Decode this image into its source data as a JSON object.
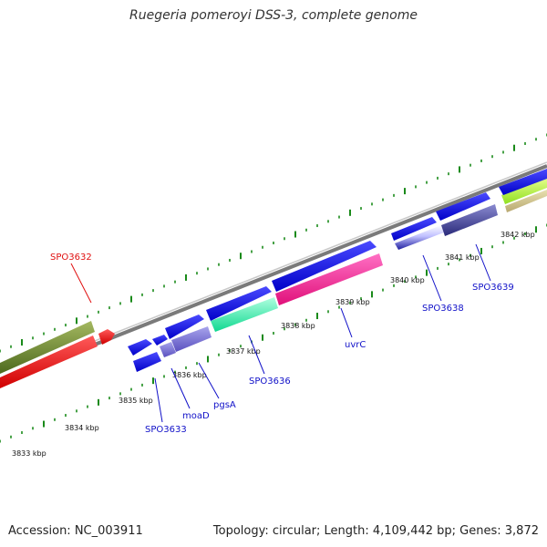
{
  "title": "Ruegeria pomeroyi DSS-3, complete genome",
  "footer": {
    "accession": "Accession: NC_003911",
    "summary": "Topology: circular; Length: 4,109,442 bp; Genes: 3,872"
  },
  "colors": {
    "forward_gene": "#1010e0",
    "ticks": "#1a8a1a",
    "backbone": "#8a8a8a",
    "label_red": "#e01010",
    "label_blue": "#1010c8"
  },
  "ruler": [
    "3833 kbp",
    "3834 kbp",
    "3835 kbp",
    "3836 kbp",
    "3837 kbp",
    "3838 kbp",
    "3839 kbp",
    "3840 kbp",
    "3841 kbp",
    "3842 kbp"
  ],
  "gene_labels": [
    {
      "text": "SPO3632",
      "color": "#e01010"
    },
    {
      "text": "SPO3633",
      "color": "#1010c8"
    },
    {
      "text": "moaD",
      "color": "#1010c8"
    },
    {
      "text": "pgsA",
      "color": "#1010c8"
    },
    {
      "text": "SPO3636",
      "color": "#1010c8"
    },
    {
      "text": "uvrC",
      "color": "#1010c8"
    },
    {
      "text": "SPO3638",
      "color": "#1010c8"
    },
    {
      "text": "SPO3639",
      "color": "#1010c8"
    }
  ]
}
